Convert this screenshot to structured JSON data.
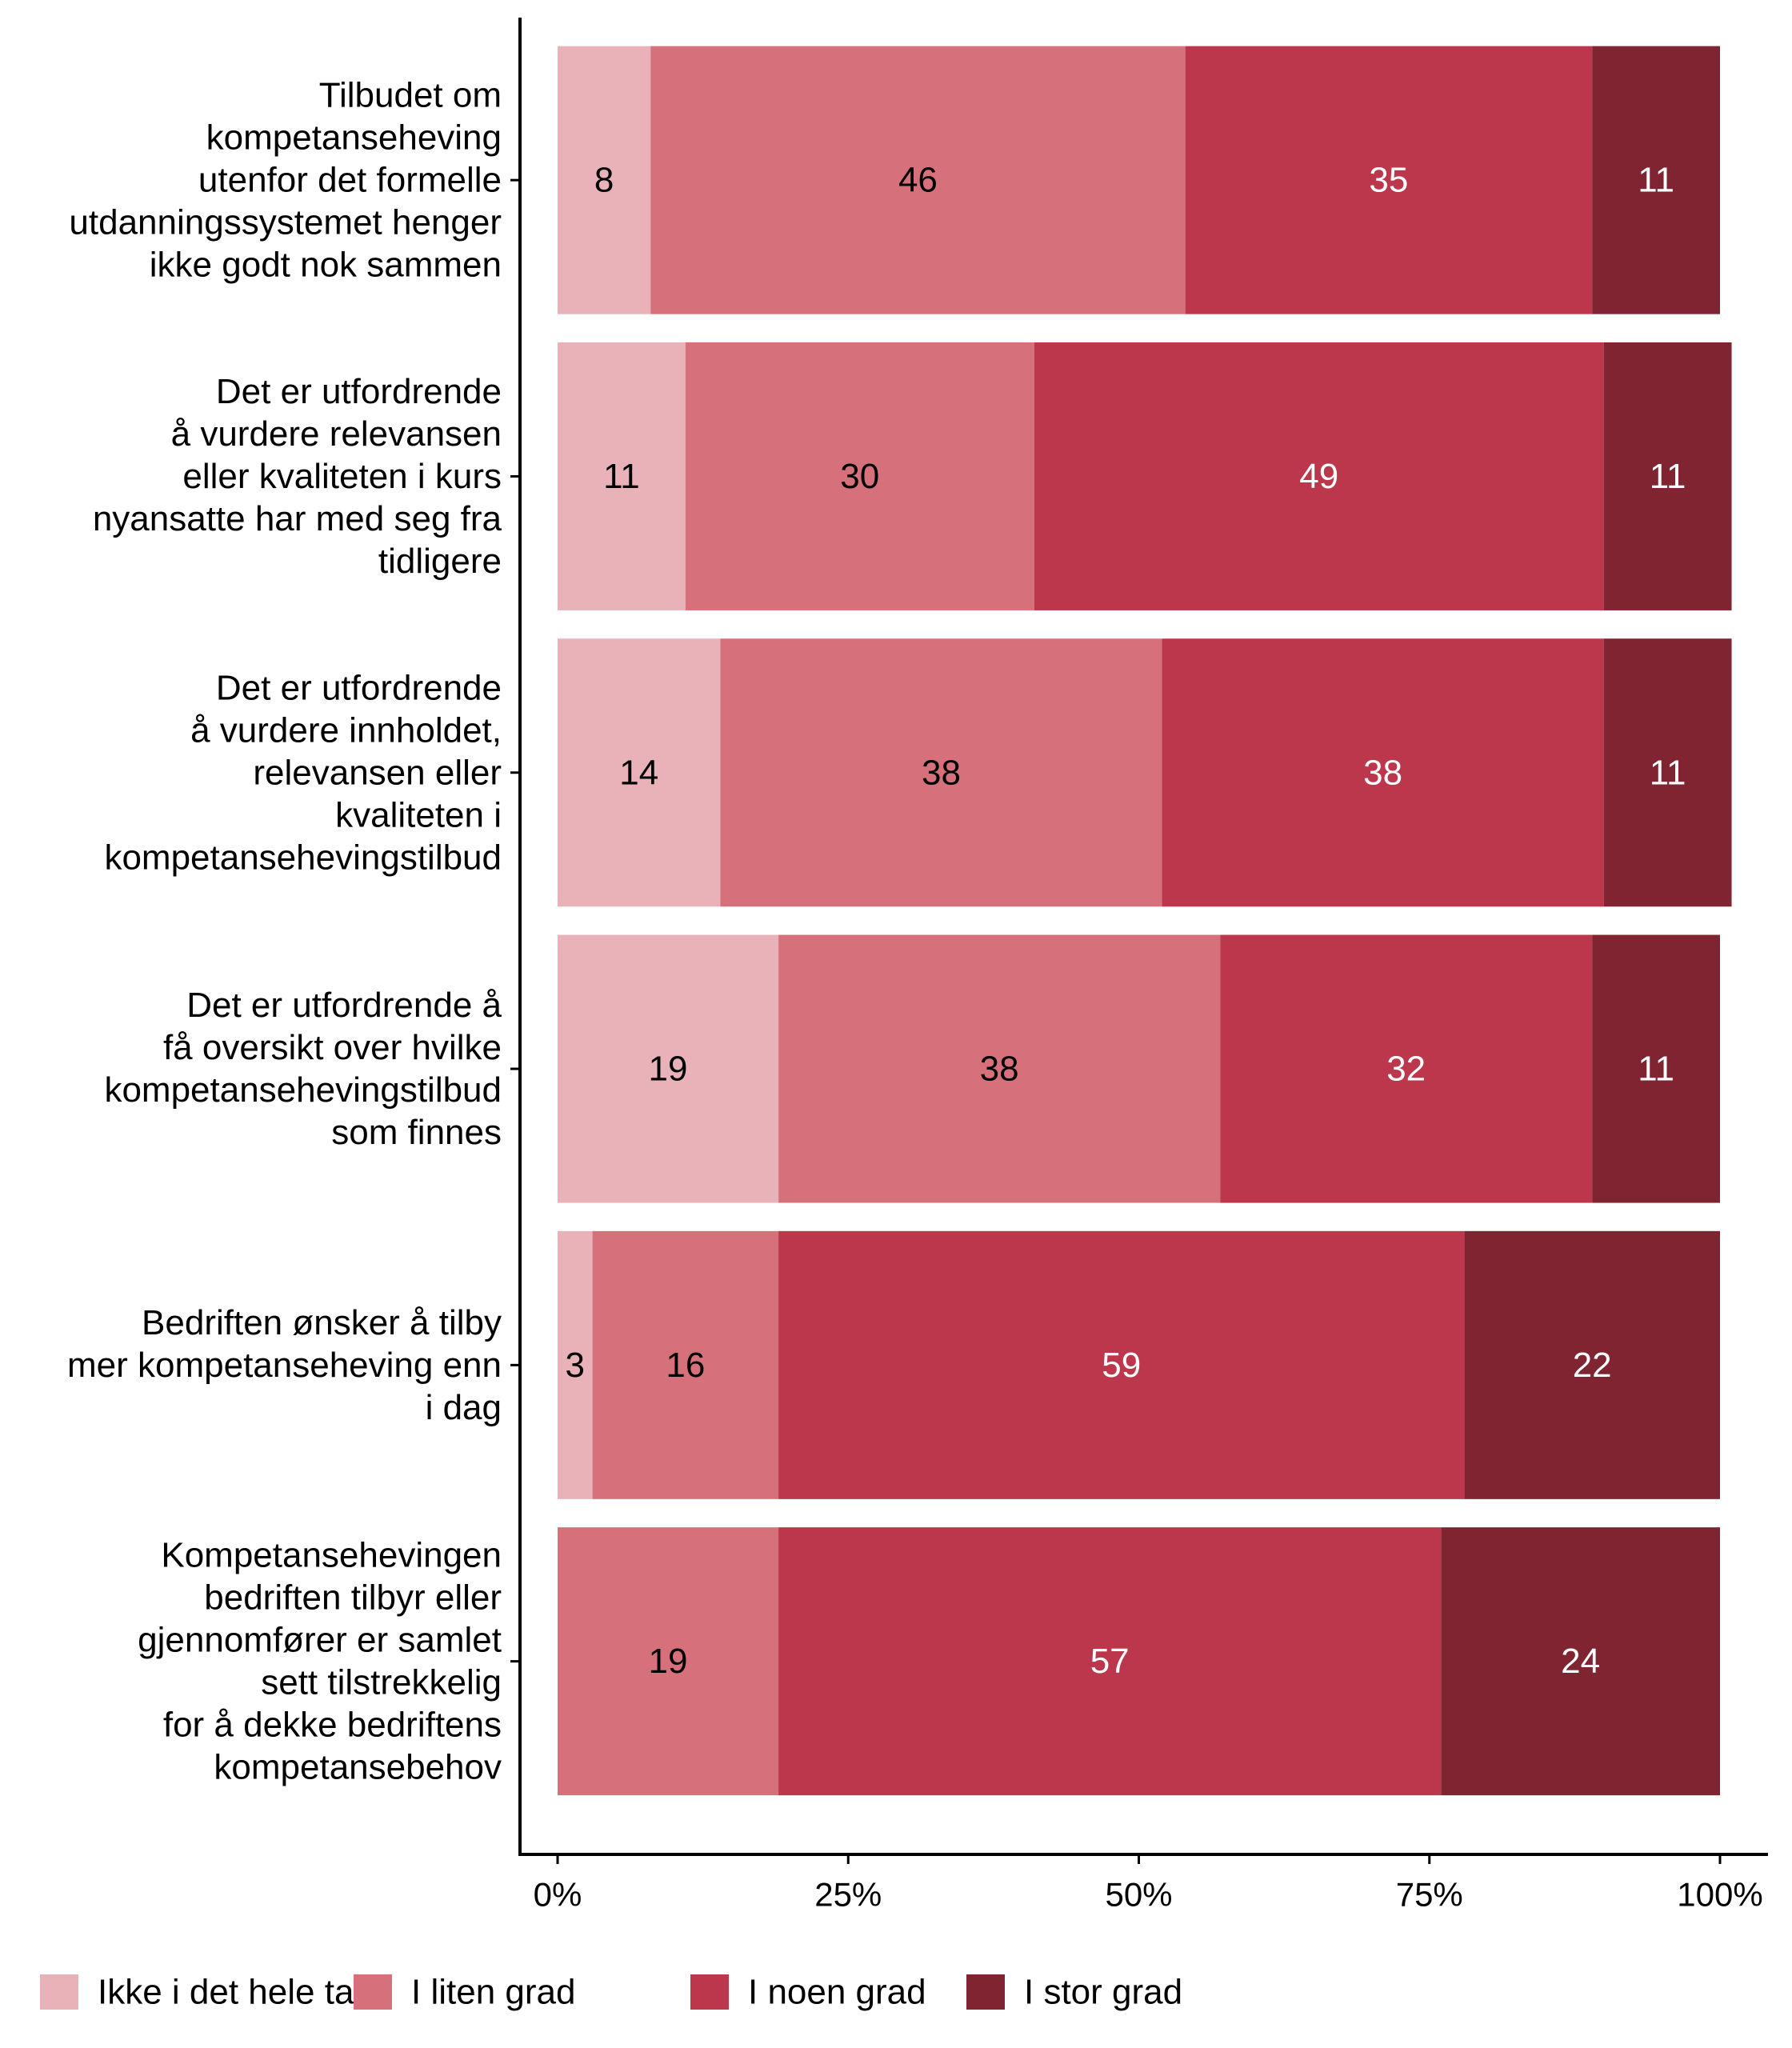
{
  "chart_data": {
    "type": "bar",
    "orientation": "horizontal",
    "stacked": true,
    "categories": [
      "Tilbudet om kompetanseheving utenfor det formelle utdanningssystemet henger ikke godt nok sammen",
      "Det er utfordrende å vurdere relevansen eller kvaliteten i kurs nyansatte har med seg fra tidligere",
      "Det er utfordrende å vurdere innholdet, relevansen eller kvaliteten i kompetansehevingstilbud",
      "Det er utfordrende å få oversikt over hvilke kompetansehevingstilbud som finnes",
      "Bedriften ønsker å tilby mer kompetanseheving enn i dag",
      "Kompetansehevingen bedriften tilbyr eller gjennomfører er samlet sett tilstrekkelig for å dekke bedriftens kompetansebehov"
    ],
    "category_lines": [
      [
        "Tilbudet om",
        "kompetanseheving",
        "utenfor det formelle",
        "utdanningssystemet henger",
        "ikke godt nok sammen"
      ],
      [
        "Det er utfordrende",
        "å vurdere relevansen",
        "eller kvaliteten i kurs",
        "nyansatte har med seg fra",
        "tidligere"
      ],
      [
        "Det er utfordrende",
        "å vurdere innholdet,",
        "relevansen eller",
        "kvaliteten i",
        "kompetansehevingstilbud"
      ],
      [
        "Det er utfordrende å",
        "få oversikt over hvilke",
        "kompetansehevingstilbud",
        "som finnes"
      ],
      [
        "Bedriften ønsker å tilby",
        "mer kompetanseheving enn",
        "i dag"
      ],
      [
        "Kompetansehevingen",
        "bedriften tilbyr eller",
        "gjennomfører er samlet",
        "sett tilstrekkelig",
        "for å dekke bedriftens",
        "kompetansebehov"
      ]
    ],
    "series": [
      {
        "name": "Ikke i det hele tatt",
        "color": "#e8b2b8",
        "label_color": "#000000",
        "values": [
          8,
          11,
          14,
          19,
          3,
          0
        ]
      },
      {
        "name": "I liten grad",
        "color": "#d6717c",
        "label_color": "#000000",
        "values": [
          46,
          30,
          38,
          38,
          16,
          19
        ]
      },
      {
        "name": "I noen grad",
        "color": "#bc374b",
        "label_color": "#ffffff",
        "values": [
          35,
          49,
          38,
          32,
          59,
          57
        ]
      },
      {
        "name": "I stor grad",
        "color": "#7f2430",
        "label_color": "#ffffff",
        "values": [
          11,
          11,
          11,
          11,
          22,
          24
        ]
      }
    ],
    "xlim": [
      0,
      100
    ],
    "x_ticks": [
      0,
      25,
      50,
      75,
      100
    ],
    "x_tick_labels": [
      "0%",
      "25%",
      "50%",
      "75%",
      "100%"
    ],
    "title": "",
    "xlabel": "",
    "ylabel": "",
    "grid": false,
    "legend_position": "bottom"
  }
}
